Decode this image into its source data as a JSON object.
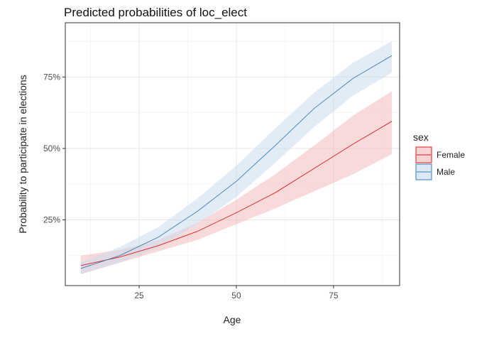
{
  "chart_data": {
    "type": "line",
    "title": "Predicted probabilities of loc_elect",
    "xlabel": "Age",
    "ylabel": "Probability to participate in elections",
    "xlim": [
      6,
      92
    ],
    "ylim": [
      0.02,
      0.94
    ],
    "xticks": [
      25,
      50,
      75
    ],
    "xtick_labels": [
      "25",
      "50",
      "75"
    ],
    "yticks": [
      0.25,
      0.5,
      0.75
    ],
    "ytick_labels": [
      "25%",
      "50%",
      "75%"
    ],
    "grid": true,
    "legend": {
      "title": "sex",
      "position": "right"
    },
    "x": [
      10,
      20,
      30,
      40,
      50,
      60,
      70,
      80,
      90
    ],
    "series": [
      {
        "name": "Female",
        "color": "#e41a1c",
        "fill": "#f4b6b8",
        "values": [
          0.09,
          0.12,
          0.16,
          0.21,
          0.275,
          0.345,
          0.43,
          0.515,
          0.595
        ],
        "lower": [
          0.06,
          0.1,
          0.14,
          0.18,
          0.235,
          0.29,
          0.35,
          0.41,
          0.48
        ],
        "upper": [
          0.125,
          0.145,
          0.18,
          0.24,
          0.32,
          0.41,
          0.51,
          0.615,
          0.7
        ]
      },
      {
        "name": "Male",
        "color": "#377eb8",
        "fill": "#c6d9ee",
        "values": [
          0.08,
          0.125,
          0.19,
          0.28,
          0.385,
          0.51,
          0.64,
          0.745,
          0.825
        ],
        "lower": [
          0.06,
          0.1,
          0.155,
          0.235,
          0.33,
          0.45,
          0.575,
          0.685,
          0.765
        ],
        "upper": [
          0.1,
          0.155,
          0.225,
          0.325,
          0.44,
          0.57,
          0.695,
          0.8,
          0.875
        ]
      }
    ]
  }
}
